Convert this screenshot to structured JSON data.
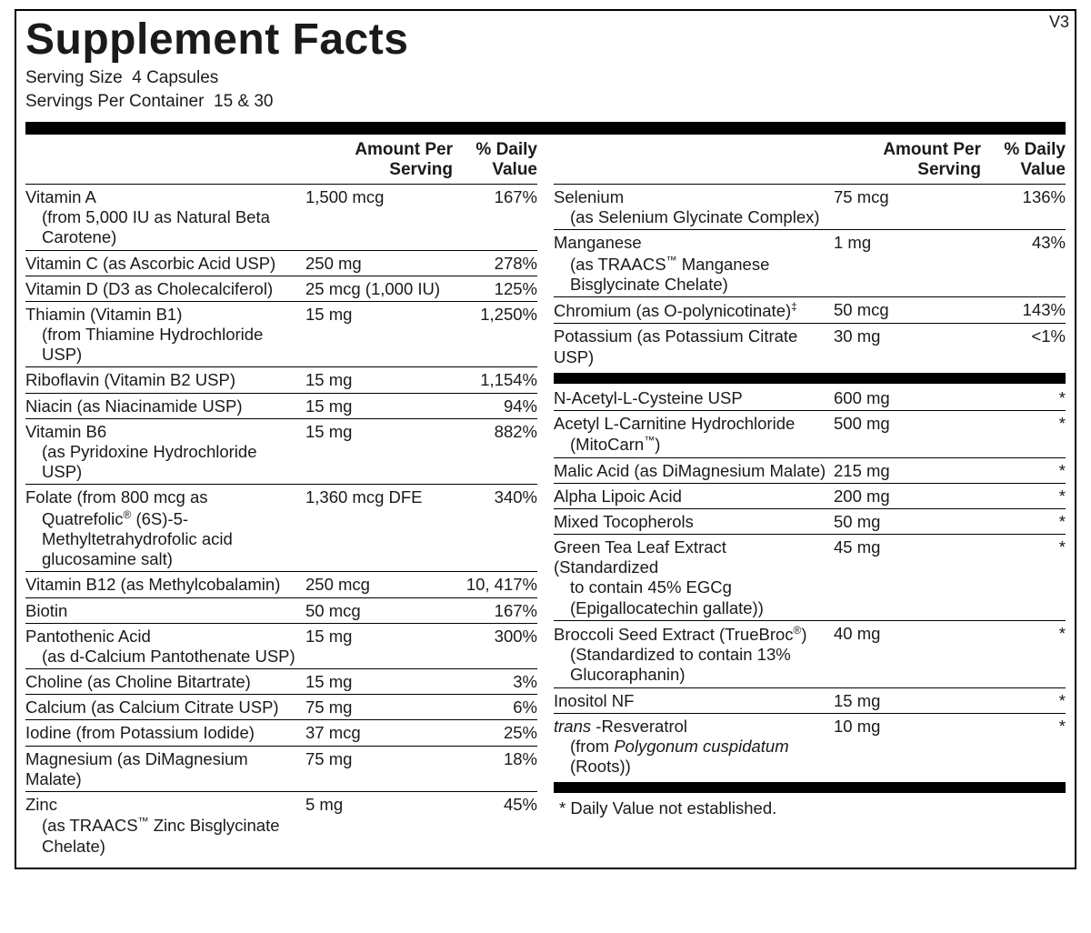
{
  "version_tag": "V3",
  "title": "Supplement Facts",
  "serving_size_label": "Serving Size",
  "serving_size_value": "4 Capsules",
  "servings_per_container_label": "Servings Per Container",
  "servings_per_container_value": "15 & 30",
  "header_amount": "Amount Per Serving",
  "header_dv": "% Daily Value",
  "footnote": "*  Daily Value not established.",
  "left": [
    {
      "name": "Vitamin A",
      "sub": "(from 5,000 IU as Natural Beta Carotene)",
      "amt": "1,500 mcg",
      "dv": "167%"
    },
    {
      "name": "Vitamin C (as Ascorbic Acid USP)",
      "amt": "250 mg",
      "dv": "278%"
    },
    {
      "name": "Vitamin D (D3 as Cholecalciferol)",
      "amt": "25 mcg (1,000 IU)",
      "dv": "125%"
    },
    {
      "name": "Thiamin (Vitamin B1)",
      "sub": "(from Thiamine Hydrochloride USP)",
      "amt": "15 mg",
      "dv": "1,250%"
    },
    {
      "name": "Riboflavin (Vitamin B2 USP)",
      "amt": "15 mg",
      "dv": "1,154%"
    },
    {
      "name": "Niacin (as Niacinamide USP)",
      "amt": "15 mg",
      "dv": "94%"
    },
    {
      "name": "Vitamin B6",
      "sub": "(as Pyridoxine Hydrochloride USP)",
      "amt": "15 mg",
      "dv": "882%"
    },
    {
      "name": "Folate (from 800 mcg as",
      "sub": "Quatrefolic® (6S)-5-Methyltetrahydrofolic acid glucosamine salt)",
      "amt": "1,360 mcg DFE",
      "dv": "340%"
    },
    {
      "name": "Vitamin B12 (as Methylcobalamin)",
      "amt": "250 mcg",
      "dv": "10, 417%"
    },
    {
      "name": "Biotin",
      "amt": "50 mcg",
      "dv": "167%"
    },
    {
      "name": "Pantothenic Acid",
      "sub": "(as d-Calcium Pantothenate USP)",
      "amt": "15 mg",
      "dv": "300%"
    },
    {
      "name": "Choline (as Choline Bitartrate)",
      "amt": "15 mg",
      "dv": "3%"
    },
    {
      "name": "Calcium (as Calcium Citrate USP)",
      "amt": "75 mg",
      "dv": "6%"
    },
    {
      "name": "Iodine (from Potassium Iodide)",
      "amt": "37 mcg",
      "dv": "25%"
    },
    {
      "name": "Magnesium (as DiMagnesium Malate)",
      "amt": "75 mg",
      "dv": "18%"
    },
    {
      "name": "Zinc",
      "sub": "(as TRAACS™ Zinc Bisglycinate Chelate)",
      "amt": "5 mg",
      "dv": "45%",
      "noborder": true
    }
  ],
  "right_top": [
    {
      "name": "Selenium",
      "sub": "(as Selenium Glycinate Complex)",
      "amt": "75 mcg",
      "dv": "136%"
    },
    {
      "name": "Manganese",
      "sub": "(as TRAACS™ Manganese Bisglycinate Chelate)",
      "amt": "1 mg",
      "dv": "43%"
    },
    {
      "name": "Chromium (as O-polynicotinate)‡",
      "amt": "50 mcg",
      "dv": "143%"
    },
    {
      "name": "Potassium (as Potassium Citrate USP)",
      "amt": "30 mg",
      "dv": "<1%",
      "noborder": true
    }
  ],
  "right_bottom": [
    {
      "name": "N-Acetyl-L-Cysteine USP",
      "amt": "600 mg",
      "dv": "*"
    },
    {
      "name": "Acetyl L-Carnitine Hydrochloride",
      "sub": "(MitoCarn™)",
      "amt": "500 mg",
      "dv": "*"
    },
    {
      "name": "Malic Acid (as DiMagnesium Malate)",
      "amt": "215 mg",
      "dv": "*"
    },
    {
      "name": "Alpha Lipoic Acid",
      "amt": "200 mg",
      "dv": "*"
    },
    {
      "name": "Mixed Tocopherols",
      "amt": "50 mg",
      "dv": "*"
    },
    {
      "name": "Green Tea Leaf Extract (Standardized",
      "sub": "to contain 45% EGCg (Epigallocatechin gallate))",
      "amt": "45 mg",
      "dv": "*"
    },
    {
      "name": "Broccoli Seed Extract (TrueBroc®)",
      "sub": "(Standardized to contain 13% Glucoraphanin)",
      "amt": "40 mg",
      "dv": "*"
    },
    {
      "name": "Inositol NF",
      "amt": "15 mg",
      "dv": "*"
    },
    {
      "name_html": "<span class='italic'>trans</span> -Resveratrol",
      "sub_html": "(from <span class='italic'>Polygonum cuspidatum</span> (Roots))",
      "amt": "10 mg",
      "dv": "*",
      "noborder": true
    }
  ]
}
